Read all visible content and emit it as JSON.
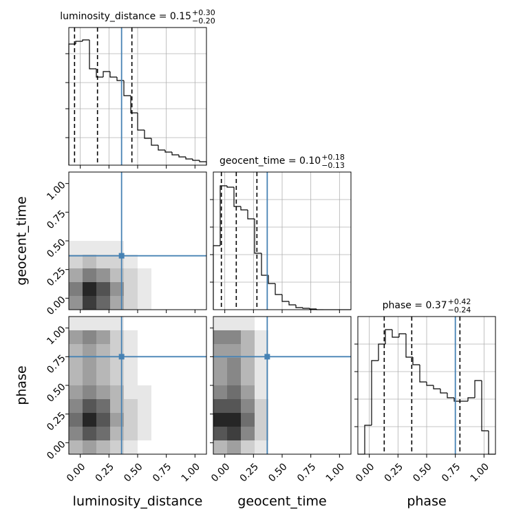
{
  "chart_data": [
    {
      "type": "histogram",
      "title": "luminosity_distance = 0.15",
      "title_sup": "+0.30",
      "title_sub": "−0.20",
      "bins": [
        -0.1,
        -0.04,
        0.02,
        0.08,
        0.14,
        0.2,
        0.26,
        0.32,
        0.38,
        0.44,
        0.5,
        0.56,
        0.62,
        0.68,
        0.74,
        0.8,
        0.86,
        0.92,
        0.98,
        1.04,
        1.1
      ],
      "values": [
        176,
        180,
        182,
        140,
        128,
        136,
        128,
        123,
        101,
        76,
        51,
        39,
        29,
        22,
        19,
        15,
        12,
        9,
        7,
        5
      ],
      "color": "#000000",
      "quantiles": [
        -0.05,
        0.15,
        0.45
      ],
      "truth": 0.36,
      "truth_color": "#4682b4",
      "xlim": [
        -0.1,
        1.1
      ],
      "ylim": [
        0,
        200
      ],
      "yticks": [
        40,
        82,
        120,
        162
      ],
      "grid": true
    },
    {
      "type": "heatmap",
      "xbins": [
        -0.1,
        0.02,
        0.14,
        0.26,
        0.38,
        0.5,
        0.62,
        0.74
      ],
      "ybins": [
        -0.1,
        0.02,
        0.14,
        0.26,
        0.38,
        0.5
      ],
      "values": [
        [
          5,
          9,
          7,
          4,
          2,
          1,
          0
        ],
        [
          6,
          10,
          8,
          5,
          2,
          1,
          0
        ],
        [
          4,
          6,
          5,
          3,
          2,
          1,
          0
        ],
        [
          2,
          3,
          2,
          2,
          1,
          0,
          0
        ],
        [
          1,
          1,
          1,
          1,
          0,
          0,
          0
        ]
      ],
      "color": "#000000",
      "truth": [
        0.36,
        0.37
      ],
      "truth_color": "#4682b4",
      "xlim": [
        -0.1,
        1.1
      ],
      "ylim": [
        -0.1,
        1.1
      ],
      "yticks": [
        {
          "value": 0,
          "label": "0.00"
        },
        {
          "value": 0.25,
          "label": "0.25"
        },
        {
          "value": 0.5,
          "label": "0.50"
        },
        {
          "value": 0.75,
          "label": "0.75"
        },
        {
          "value": 1,
          "label": "1.00"
        }
      ],
      "ylabel": "geocent_time"
    },
    {
      "type": "histogram",
      "title": "geocent_time = 0.10",
      "title_sup": "+0.18",
      "title_sub": "−0.13",
      "bins": [
        -0.1,
        -0.04,
        0.02,
        0.08,
        0.14,
        0.2,
        0.26,
        0.32,
        0.38,
        0.44,
        0.5,
        0.56,
        0.62,
        0.68,
        0.74,
        0.8,
        0.86,
        0.92,
        0.98,
        1.04,
        1.1
      ],
      "values": [
        93,
        180,
        178,
        150,
        145,
        132,
        82,
        50,
        38,
        22,
        12,
        7,
        3,
        2,
        1,
        0,
        0,
        0,
        0,
        0
      ],
      "color": "#000000",
      "quantiles": [
        -0.03,
        0.1,
        0.28
      ],
      "truth": 0.37,
      "truth_color": "#4682b4",
      "xlim": [
        -0.1,
        1.1
      ],
      "ylim": [
        0,
        200
      ],
      "yticks": [
        40,
        80,
        120,
        160
      ],
      "grid": true
    },
    {
      "type": "heatmap",
      "xbins": [
        -0.1,
        0.02,
        0.14,
        0.26,
        0.38,
        0.5,
        0.62,
        0.74
      ],
      "ybins": [
        -0.1,
        0.02,
        0.14,
        0.26,
        0.38,
        0.5,
        0.62,
        0.74,
        0.86,
        0.98,
        1.1
      ],
      "values": [
        [
          3,
          4,
          3,
          2,
          1,
          0,
          0
        ],
        [
          5,
          7,
          6,
          3,
          2,
          1,
          0
        ],
        [
          6,
          9,
          7,
          4,
          2,
          1,
          0
        ],
        [
          5,
          7,
          6,
          3,
          2,
          1,
          0
        ],
        [
          4,
          5,
          4,
          3,
          1,
          1,
          0
        ],
        [
          3,
          4,
          3,
          2,
          1,
          0,
          0
        ],
        [
          3,
          4,
          3,
          2,
          1,
          0,
          0
        ],
        [
          3,
          4,
          3,
          2,
          1,
          0,
          0
        ],
        [
          4,
          5,
          4,
          2,
          1,
          0,
          0
        ],
        [
          1,
          1,
          1,
          1,
          0,
          0,
          0
        ]
      ],
      "color": "#000000",
      "truth": [
        0.36,
        0.75
      ],
      "truth_color": "#4682b4",
      "xlim": [
        -0.1,
        1.1
      ],
      "ylim": [
        -0.1,
        1.1
      ],
      "xticks": [
        {
          "value": 0,
          "label": "0.00"
        },
        {
          "value": 0.25,
          "label": "0.25"
        },
        {
          "value": 0.5,
          "label": "0.50"
        },
        {
          "value": 0.75,
          "label": "0.75"
        },
        {
          "value": 1,
          "label": "1.00"
        }
      ],
      "yticks": [
        {
          "value": 0,
          "label": "0.00"
        },
        {
          "value": 0.25,
          "label": "0.25"
        },
        {
          "value": 0.5,
          "label": "0.50"
        },
        {
          "value": 0.75,
          "label": "0.75"
        },
        {
          "value": 1,
          "label": "1.00"
        }
      ],
      "xlabel": "luminosity_distance",
      "ylabel": "phase"
    },
    {
      "type": "heatmap",
      "xbins": [
        -0.1,
        0.02,
        0.14,
        0.26,
        0.38,
        0.5
      ],
      "ybins": [
        -0.1,
        0.02,
        0.14,
        0.26,
        0.38,
        0.5,
        0.62,
        0.74,
        0.86,
        0.98,
        1.1
      ],
      "values": [
        [
          3,
          4,
          2,
          1,
          0
        ],
        [
          7,
          8,
          5,
          2,
          0
        ],
        [
          9,
          9,
          6,
          2,
          0
        ],
        [
          7,
          7,
          5,
          2,
          0
        ],
        [
          5,
          6,
          4,
          1,
          0
        ],
        [
          4,
          5,
          3,
          1,
          0
        ],
        [
          4,
          5,
          3,
          1,
          0
        ],
        [
          4,
          4,
          3,
          1,
          0
        ],
        [
          5,
          5,
          3,
          1,
          0
        ],
        [
          1,
          1,
          1,
          0,
          0
        ]
      ],
      "color": "#000000",
      "truth": [
        0.37,
        0.75
      ],
      "truth_color": "#4682b4",
      "xlim": [
        -0.1,
        1.1
      ],
      "ylim": [
        -0.1,
        1.1
      ],
      "xticks": [
        {
          "value": 0,
          "label": "0.00"
        },
        {
          "value": 0.25,
          "label": "0.25"
        },
        {
          "value": 0.5,
          "label": "0.50"
        },
        {
          "value": 0.75,
          "label": "0.75"
        },
        {
          "value": 1,
          "label": "1.00"
        }
      ],
      "xlabel": "geocent_time"
    },
    {
      "type": "histogram",
      "title": "phase = 0.37",
      "title_sup": "+0.42",
      "title_sub": "−0.24",
      "bins": [
        -0.1,
        -0.04,
        0.02,
        0.08,
        0.14,
        0.2,
        0.26,
        0.32,
        0.38,
        0.44,
        0.5,
        0.56,
        0.62,
        0.68,
        0.74,
        0.8,
        0.86,
        0.92,
        0.98,
        1.04,
        1.1
      ],
      "values": [
        0,
        42,
        136,
        160,
        181,
        170,
        175,
        141,
        130,
        105,
        100,
        95,
        89,
        82,
        77,
        77,
        82,
        107,
        34,
        0
      ],
      "color": "#000000",
      "quantiles": [
        0.13,
        0.37,
        0.79
      ],
      "truth": 0.75,
      "truth_color": "#4682b4",
      "xlim": [
        -0.1,
        1.1
      ],
      "ylim": [
        0,
        200
      ],
      "yticks": [
        40,
        80,
        120,
        160
      ],
      "grid": true,
      "xticks": [
        {
          "value": 0,
          "label": "0.00"
        },
        {
          "value": 0.25,
          "label": "0.25"
        },
        {
          "value": 0.5,
          "label": "0.50"
        },
        {
          "value": 0.75,
          "label": "0.75"
        },
        {
          "value": 1,
          "label": "1.00"
        }
      ],
      "xlabel": "phase"
    }
  ]
}
